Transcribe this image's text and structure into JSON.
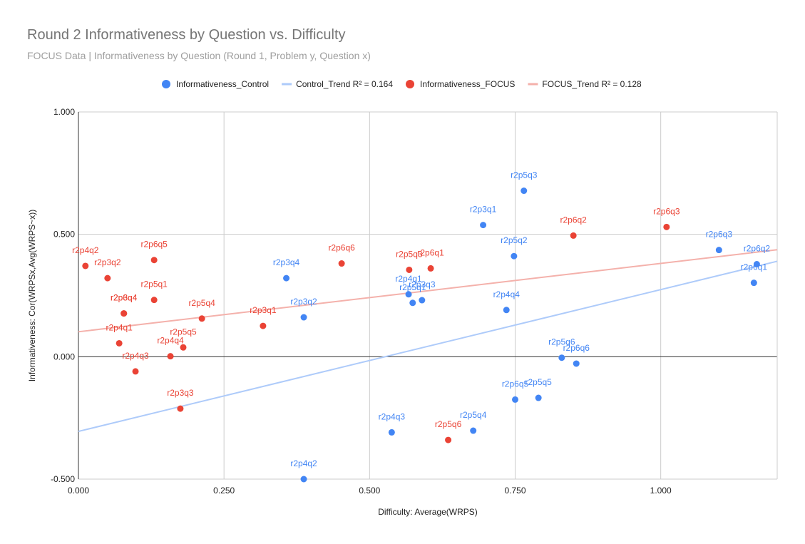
{
  "title": "Round 2 Informativeness by Question vs. Difficulty",
  "subtitle": "FOCUS Data | Informativeness by Question (Round 1, Problem y, Question x)",
  "chart_data": {
    "type": "scatter",
    "xlabel": "Difficulty: Average(WRPS)",
    "ylabel": "Informativeness: Cor(WRPSx,Avg(WRPS~x))",
    "xlim": [
      0,
      1.2
    ],
    "ylim": [
      -0.5,
      1.0
    ],
    "x_ticks": [
      "0.000",
      "0.250",
      "0.500",
      "0.750",
      "1.000"
    ],
    "y_ticks": [
      "-0.500",
      "0.000",
      "0.500",
      "1.000"
    ],
    "grid": true,
    "legend_position": "top",
    "series": [
      {
        "name": "Informativeness_Control",
        "color": "#4285f4",
        "points": [
          {
            "label": "r2p5q3",
            "x": 0.765,
            "y": 0.678
          },
          {
            "label": "r2p3q1",
            "x": 0.695,
            "y": 0.538
          },
          {
            "label": "r2p5q2",
            "x": 0.748,
            "y": 0.411
          },
          {
            "label": "r2p6q3",
            "x": 1.1,
            "y": 0.436
          },
          {
            "label": "r2p6q2",
            "x": 1.165,
            "y": 0.378
          },
          {
            "label": "r2p6q1",
            "x": 1.16,
            "y": 0.302
          },
          {
            "label": "r2p3q4",
            "x": 0.357,
            "y": 0.321
          },
          {
            "label": "r2p4q1",
            "x": 0.567,
            "y": 0.255
          },
          {
            "label": "r2p5q1",
            "x": 0.574,
            "y": 0.22
          },
          {
            "label": "r2p3q3",
            "x": 0.59,
            "y": 0.231
          },
          {
            "label": "r2p3q2",
            "x": 0.387,
            "y": 0.161
          },
          {
            "label": "r2p4q4",
            "x": 0.735,
            "y": 0.191
          },
          {
            "label": "r2p5q6",
            "x": 0.83,
            "y": -0.004
          },
          {
            "label": "r2p6q6",
            "x": 0.855,
            "y": -0.028
          },
          {
            "label": "r2p6q5",
            "x": 0.75,
            "y": -0.175
          },
          {
            "label": "r2p5q5",
            "x": 0.79,
            "y": -0.168
          },
          {
            "label": "r2p4q3",
            "x": 0.538,
            "y": -0.309
          },
          {
            "label": "r2p5q4",
            "x": 0.678,
            "y": -0.302
          },
          {
            "label": "r2p4q2",
            "x": 0.387,
            "y": -0.5
          }
        ]
      },
      {
        "name": "Informativeness_FOCUS",
        "color": "#ea4335",
        "points": [
          {
            "label": "r2p4q2",
            "x": 0.012,
            "y": 0.371
          },
          {
            "label": "r2p3q2",
            "x": 0.05,
            "y": 0.321
          },
          {
            "label": "r2p6q5",
            "x": 0.13,
            "y": 0.395
          },
          {
            "label": "r2p5q1",
            "x": 0.13,
            "y": 0.232
          },
          {
            "label": "r2p3q4",
            "x": 0.078,
            "y": 0.177
          },
          {
            "label": "r2p6q4",
            "x": 0.078,
            "y": 0.177
          },
          {
            "label": "r2p4q1",
            "x": 0.07,
            "y": 0.055
          },
          {
            "label": "r2p4q3",
            "x": 0.098,
            "y": -0.06
          },
          {
            "label": "r2p4q4",
            "x": 0.158,
            "y": 0.002
          },
          {
            "label": "r2p5q5",
            "x": 0.18,
            "y": 0.038
          },
          {
            "label": "r2p5q4",
            "x": 0.212,
            "y": 0.156
          },
          {
            "label": "r2p3q3",
            "x": 0.175,
            "y": -0.212
          },
          {
            "label": "r2p3q1",
            "x": 0.317,
            "y": 0.126
          },
          {
            "label": "r2p6q6",
            "x": 0.452,
            "y": 0.381
          },
          {
            "label": "r2p5q3",
            "x": 0.568,
            "y": 0.355
          },
          {
            "label": "r2p6q1",
            "x": 0.605,
            "y": 0.361
          },
          {
            "label": "r2p5q6",
            "x": 0.635,
            "y": -0.34
          },
          {
            "label": "r2p6q2",
            "x": 0.85,
            "y": 0.495
          },
          {
            "label": "r2p6q3",
            "x": 1.01,
            "y": 0.53
          }
        ]
      }
    ],
    "trendlines": [
      {
        "name": "Control_Trend R² = 0.164",
        "color": "#aecbfa",
        "x0": 0,
        "y0": -0.305,
        "x1": 1.2,
        "y1": 0.39
      },
      {
        "name": "FOCUS_Trend R² = 0.128",
        "color": "#f4b1ab",
        "x0": 0,
        "y0": 0.102,
        "x1": 1.2,
        "y1": 0.437
      }
    ]
  }
}
